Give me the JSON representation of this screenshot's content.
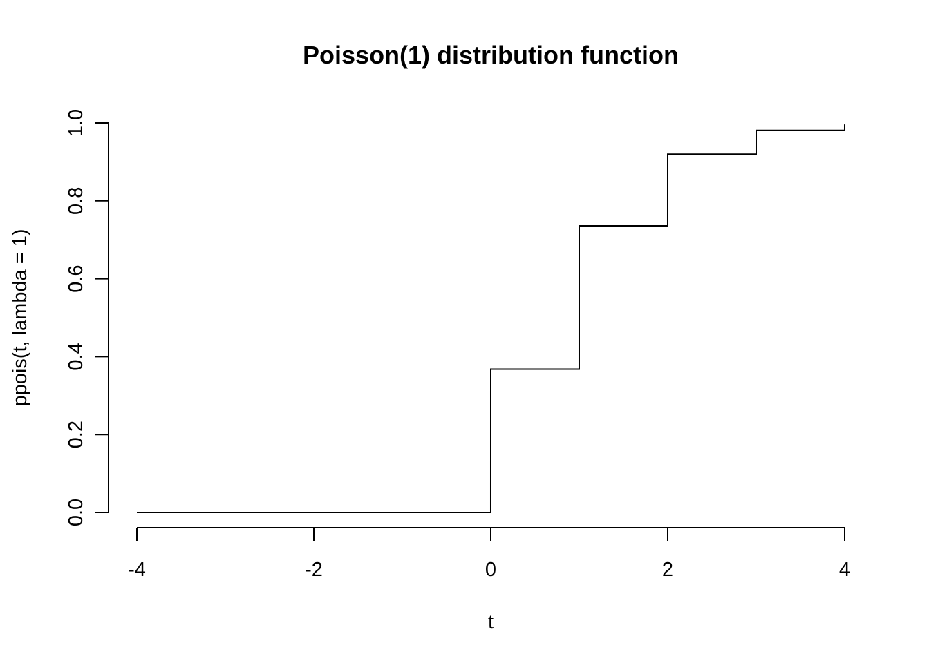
{
  "chart_data": {
    "type": "line",
    "title": "Poisson(1) distribution function",
    "xlabel": "t",
    "ylabel": "ppois(t, lambda = 1)",
    "xlim": [
      -4,
      4
    ],
    "ylim": [
      0,
      1
    ],
    "x_ticks": [
      -4,
      -2,
      0,
      2,
      4
    ],
    "x_tick_labels": [
      "-4",
      "-2",
      "0",
      "2",
      "4"
    ],
    "y_ticks": [
      0,
      0.2,
      0.4,
      0.6,
      0.8,
      1.0
    ],
    "y_tick_labels": [
      "0.0",
      "0.2",
      "0.4",
      "0.6",
      "0.8",
      "1.0"
    ],
    "grid": false,
    "series": [
      {
        "x": [
          -4,
          -0.0001,
          0,
          0.9999,
          1,
          1.9999,
          2,
          2.9999,
          3,
          3.9999,
          4
        ],
        "y": [
          0,
          0,
          0.3679,
          0.3679,
          0.7358,
          0.7358,
          0.9197,
          0.9197,
          0.981,
          0.981,
          0.9963
        ]
      }
    ],
    "color": "#000000"
  }
}
